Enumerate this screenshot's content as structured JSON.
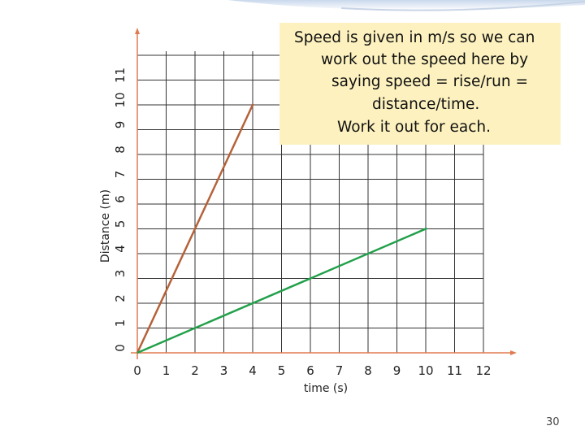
{
  "chart_data": {
    "type": "line",
    "xlabel": "time (s)",
    "ylabel": "Distance (m)",
    "x_ticks": [
      0,
      1,
      2,
      3,
      4,
      5,
      6,
      7,
      8,
      9,
      10,
      11,
      12
    ],
    "y_ticks": [
      0,
      1,
      2,
      3,
      4,
      5,
      6,
      7,
      8,
      9,
      10,
      11
    ],
    "xlim": [
      0,
      12
    ],
    "ylim": [
      0,
      11
    ],
    "grid": true,
    "series": [
      {
        "color": "#b5623a",
        "points": [
          [
            0,
            0
          ],
          [
            4,
            10
          ]
        ]
      },
      {
        "color": "#22a04a",
        "points": [
          [
            0,
            0
          ],
          [
            10,
            5
          ]
        ]
      }
    ]
  },
  "note": {
    "lines": [
      "Speed is given in m/s so we can",
      "work out the speed here by",
      "saying speed = rise/run =",
      "distance/time.",
      "Work it out for each."
    ]
  },
  "colors": {
    "note_background": "#fdf2bf",
    "axis": "#e07b50",
    "grid": "#333333"
  },
  "page_number": "30"
}
